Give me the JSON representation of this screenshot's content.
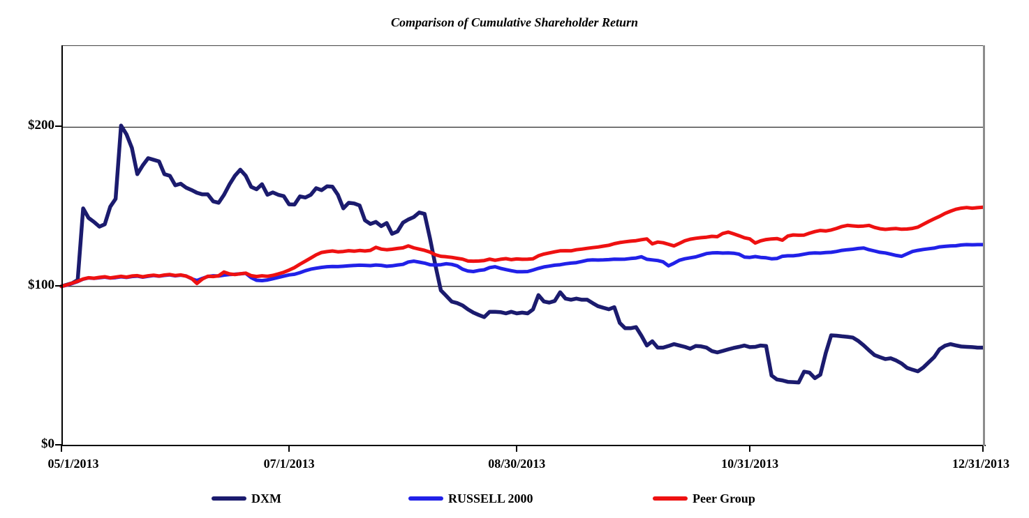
{
  "chart_data": {
    "type": "line",
    "title": "Comparison of Cumulative Shareholder Return",
    "x_axis": {
      "total_days": 170,
      "ticks": [
        {
          "label": "05/1/2013",
          "day": 0
        },
        {
          "label": "07/1/2013",
          "day": 42
        },
        {
          "label": "08/30/2013",
          "day": 84
        },
        {
          "label": "10/31/2013",
          "day": 127
        },
        {
          "label": "12/31/2013",
          "day": 170
        }
      ]
    },
    "y_axis": {
      "ylim": [
        0,
        251
      ],
      "gridlines": [
        100,
        200
      ],
      "ticks": [
        {
          "label": "$0",
          "value": 0
        },
        {
          "label": "$100",
          "value": 100
        },
        {
          "label": "$200",
          "value": 200
        }
      ]
    },
    "legend_position": "bottom",
    "series": [
      {
        "name": "DXM",
        "color": "#1b1b6e",
        "values": [
          100,
          101,
          102,
          104,
          149,
          143,
          140.5,
          137.5,
          139,
          150,
          155,
          201,
          195.5,
          187,
          170.5,
          176,
          180.5,
          179.5,
          178.5,
          170.5,
          169.5,
          163.5,
          164.5,
          162,
          160.5,
          158.8,
          157.8,
          157.8,
          153.4,
          152.5,
          157.5,
          164,
          169.5,
          173.3,
          169.5,
          162.5,
          161,
          164.2,
          157.5,
          159,
          157.5,
          156.7,
          151.5,
          151.4,
          156.5,
          155.8,
          157.5,
          161.7,
          160.4,
          162.8,
          162.6,
          157.5,
          149,
          152.5,
          152.1,
          150.8,
          141.5,
          139.2,
          140.5,
          137.8,
          139.8,
          133,
          134.5,
          140,
          142,
          143.5,
          146.4,
          145.5,
          130,
          113,
          97.5,
          94,
          90.4,
          89.5,
          88,
          85.5,
          83.5,
          82,
          80.7,
          84,
          84,
          83.8,
          83,
          84,
          83,
          83.5,
          83,
          85.5,
          94.5,
          90.5,
          89.8,
          90.8,
          96.3,
          92.3,
          91.6,
          92.3,
          91.6,
          91.6,
          89.5,
          87.5,
          86.5,
          85.6,
          86.9,
          77,
          73.7,
          73.7,
          74.4,
          69,
          62.8,
          65.5,
          61.5,
          61.5,
          62.5,
          63.7,
          62.8,
          62,
          60.8,
          62.5,
          62.3,
          61.5,
          59.3,
          58.5,
          59.4,
          60.4,
          61.3,
          62,
          62.8,
          61.8,
          62,
          62.8,
          62.5,
          44,
          41.5,
          40.9,
          40,
          39.8,
          39.6,
          46.4,
          45.8,
          42.3,
          44.5,
          58,
          69.2,
          69,
          68.6,
          68.3,
          67.8,
          65.7,
          62.9,
          59.8,
          56.8,
          55.5,
          54.3,
          54.8,
          53.4,
          51.5,
          48.8,
          47.6,
          46.6,
          49,
          52.3,
          55.5,
          60.5,
          62.7,
          63.7,
          62.9,
          62.2,
          62,
          61.8,
          61.5,
          61.5
        ]
      },
      {
        "name": "RUSSELL 2000",
        "color": "#2121e8",
        "values": [
          100,
          100.7,
          101.8,
          103,
          104.5,
          105.3,
          105,
          105.4,
          105.8,
          105.2,
          105.5,
          106,
          105.6,
          106.2,
          106.4,
          105.8,
          106.3,
          106.8,
          106.4,
          106.9,
          107.2,
          106.6,
          107,
          106.5,
          104.8,
          103.6,
          105,
          106.2,
          106.6,
          106.5,
          107,
          107.4,
          107.6,
          107.9,
          108.2,
          105.5,
          103.8,
          103.6,
          104,
          104.8,
          105.6,
          106.4,
          107.2,
          107.6,
          108.6,
          109.8,
          110.8,
          111.4,
          111.9,
          112.3,
          112.5,
          112.4,
          112.6,
          112.9,
          113.1,
          113.3,
          113.2,
          113,
          113.4,
          113.2,
          112.6,
          112.9,
          113.4,
          113.8,
          115.3,
          115.8,
          115.2,
          114.6,
          113.6,
          113.4,
          113.6,
          114.2,
          113.8,
          112.9,
          110.8,
          109.6,
          109.3,
          110,
          110.4,
          111.8,
          112.3,
          111.3,
          110.5,
          109.8,
          109.2,
          109.2,
          109.3,
          110.2,
          111.3,
          112.2,
          112.7,
          113.3,
          113.6,
          114.2,
          114.6,
          114.9,
          115.6,
          116.4,
          116.6,
          116.5,
          116.6,
          116.8,
          117.1,
          117,
          117.1,
          117.5,
          117.8,
          118.6,
          117,
          116.6,
          116.2,
          115.4,
          112.9,
          114.5,
          116.4,
          117.3,
          117.9,
          118.5,
          119.5,
          120.6,
          121,
          121.1,
          120.9,
          121,
          120.8,
          120.2,
          118.4,
          118.2,
          118.7,
          118.2,
          117.9,
          117.3,
          117.5,
          118.9,
          119.2,
          119.2,
          119.6,
          120.2,
          120.8,
          121,
          120.9,
          121.2,
          121.4,
          121.9,
          122.6,
          123,
          123.3,
          123.8,
          124.1,
          123,
          122.2,
          121.4,
          121,
          120.2,
          119.4,
          118.9,
          120.4,
          121.9,
          122.6,
          123.2,
          123.6,
          124,
          124.8,
          125.1,
          125.4,
          125.5,
          126,
          126.2,
          126.1,
          126.2,
          126.2
        ]
      },
      {
        "name": "Peer Group",
        "color": "#ee1111",
        "values": [
          100,
          100.9,
          102,
          103.2,
          104.6,
          105.4,
          105.1,
          105.6,
          106,
          105.3,
          105.8,
          106.3,
          105.8,
          106.5,
          106.7,
          106,
          106.6,
          107,
          106.5,
          107.1,
          107.4,
          106.8,
          107.2,
          106.4,
          105,
          101.8,
          104.6,
          106.3,
          106.2,
          106.6,
          109,
          107.8,
          107.4,
          107.9,
          108.3,
          106.7,
          106.2,
          106.6,
          106.3,
          106.9,
          107.8,
          108.8,
          110.2,
          111.8,
          113.9,
          115.8,
          117.8,
          119.8,
          121.3,
          121.8,
          122.2,
          121.7,
          121.9,
          122.4,
          122.1,
          122.5,
          122.2,
          122.6,
          124.5,
          123.4,
          123,
          123.3,
          123.8,
          124.2,
          125.4,
          124.2,
          123.4,
          122.6,
          121.5,
          119.8,
          118.9,
          118.6,
          118.2,
          117.6,
          117.1,
          115.9,
          115.8,
          115.9,
          116.2,
          117.1,
          116.4,
          117,
          117.4,
          116.8,
          117.2,
          117,
          117.1,
          117.3,
          119.2,
          120.3,
          121,
          121.7,
          122.3,
          122.4,
          122.3,
          123,
          123.4,
          123.9,
          124.3,
          124.7,
          125.3,
          125.8,
          126.8,
          127.5,
          128,
          128.4,
          128.7,
          129.3,
          129.8,
          126.7,
          127.8,
          127.4,
          126.4,
          125.4,
          127,
          128.6,
          129.6,
          130.2,
          130.6,
          130.9,
          131.4,
          131.2,
          133.2,
          134.1,
          133,
          131.8,
          130.5,
          129.8,
          127.2,
          128.6,
          129.4,
          129.8,
          130,
          129,
          131.6,
          132.3,
          132.1,
          132.2,
          133.4,
          134.4,
          135.1,
          134.8,
          135.4,
          136.4,
          137.6,
          138.3,
          138,
          137.7,
          137.9,
          138.3,
          137,
          136.2,
          135.8,
          136.1,
          136.3,
          135.9,
          136,
          136.4,
          137.2,
          139,
          140.8,
          142.4,
          144,
          145.8,
          147.2,
          148.4,
          149.1,
          149.5,
          149.1,
          149.4,
          149.7
        ]
      }
    ]
  },
  "colors": {
    "axis": "#000000",
    "right_border": "#8c8c8c",
    "background": "#ffffff"
  }
}
